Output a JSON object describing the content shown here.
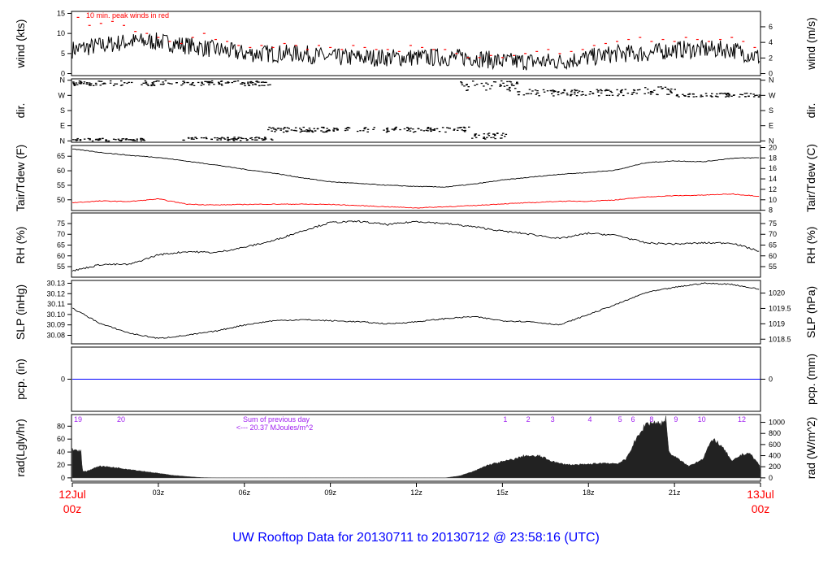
{
  "title": "UW Rooftop Data for 20130711  to  20130712 @ 23:58:16  (UTC)",
  "colors": {
    "main": "#000000",
    "peak": "#ff0000",
    "dew": "#ff0000",
    "pcp": "#0000ff",
    "accum": "#a020f0",
    "title": "#0000ff",
    "date": "#ff0000"
  },
  "x_axis": {
    "range_hours": [
      0,
      24
    ],
    "ticks": [
      {
        "h": 3,
        "label": "03z"
      },
      {
        "h": 6,
        "label": "06z"
      },
      {
        "h": 9,
        "label": "09z"
      },
      {
        "h": 12,
        "label": "12z"
      },
      {
        "h": 15,
        "label": "15z"
      },
      {
        "h": 18,
        "label": "18z"
      },
      {
        "h": 21,
        "label": "21z"
      }
    ],
    "start_label": [
      "12Jul",
      "00z"
    ],
    "end_label": [
      "13Jul",
      "00z"
    ]
  },
  "chart_data": [
    {
      "type": "line",
      "id": "wind",
      "ylabel": "wind (kts)",
      "ylabel_right": "wind (m/s)",
      "ylim": [
        -0.5,
        15.5
      ],
      "yticks": [
        0,
        5,
        10,
        15
      ],
      "yticks_right": [
        0,
        2,
        4,
        6
      ],
      "annotation": "10 min. peak winds in red",
      "hours": [
        0,
        1,
        2,
        3,
        4,
        5,
        6,
        7,
        8,
        9,
        10,
        11,
        12,
        13,
        14,
        15,
        16,
        17,
        18,
        19,
        20,
        21,
        22,
        23,
        24
      ],
      "mean": [
        6,
        7,
        8,
        8,
        7,
        6,
        5,
        5,
        5,
        4,
        4,
        4,
        4,
        4,
        4,
        3,
        3,
        3,
        4,
        5,
        5,
        6,
        6,
        6,
        4
      ],
      "peak_hours": [
        0.2,
        0.6,
        1,
        1.4,
        1.8,
        2.2,
        2.6,
        3,
        3.4,
        3.8,
        4.2,
        4.6,
        5,
        5.4,
        5.8,
        6.2,
        6.6,
        7,
        7.4,
        7.8,
        8.2,
        8.6,
        9,
        9.4,
        9.8,
        10.2,
        10.6,
        11,
        11.4,
        11.8,
        12.2,
        12.6,
        13,
        13.4,
        13.8,
        14.2,
        14.6,
        15,
        15.4,
        15.8,
        16.2,
        16.6,
        17,
        17.4,
        17.8,
        18.2,
        18.6,
        19,
        19.4,
        19.8,
        20.2,
        20.6,
        21,
        21.4,
        21.8,
        22.2,
        22.6,
        23,
        23.4,
        23.8
      ],
      "peak": [
        14,
        12,
        12.5,
        13,
        12,
        10.5,
        10,
        9,
        8,
        7.5,
        9,
        10,
        8.5,
        8,
        7,
        6.5,
        7,
        6.5,
        7.5,
        7,
        6,
        7,
        6.5,
        6,
        7,
        6.5,
        6,
        6,
        5.5,
        7,
        6.5,
        6,
        6,
        5,
        4,
        4,
        4.5,
        4,
        4.5,
        5,
        5.5,
        6,
        5,
        5.5,
        6,
        7,
        7.5,
        8,
        8.5,
        9,
        8,
        8.5,
        8,
        9,
        8.5,
        8,
        8.5,
        9,
        8,
        6.5
      ]
    },
    {
      "type": "scatter",
      "id": "dir",
      "ylabel": "dir.",
      "ylabel_right": "dir.",
      "ylim": [
        -8,
        368
      ],
      "yticks": [
        {
          "v": 0,
          "label": "N"
        },
        {
          "v": 90,
          "label": "E"
        },
        {
          "v": 180,
          "label": "S"
        },
        {
          "v": 270,
          "label": "W"
        },
        {
          "v": 360,
          "label": "N"
        }
      ],
      "clusters": [
        {
          "from": 0,
          "to": 7,
          "deg": 345,
          "spread": 15
        },
        {
          "from": 0,
          "to": 2.5,
          "deg": 10,
          "spread": 8
        },
        {
          "from": 3.8,
          "to": 7,
          "deg": 15,
          "spread": 10
        },
        {
          "from": 6.8,
          "to": 13.8,
          "deg": 70,
          "spread": 15
        },
        {
          "from": 13.8,
          "to": 15.2,
          "deg": 30,
          "spread": 20
        },
        {
          "from": 13.5,
          "to": 15.5,
          "deg": 330,
          "spread": 30
        },
        {
          "from": 15.5,
          "to": 19.8,
          "deg": 290,
          "spread": 20
        },
        {
          "from": 19.8,
          "to": 21,
          "deg": 300,
          "spread": 25
        },
        {
          "from": 21,
          "to": 24,
          "deg": 275,
          "spread": 12
        }
      ]
    },
    {
      "type": "line",
      "id": "temp",
      "ylabel": "Tair/Tdew (F)",
      "ylabel_right": "Tair/Tdew (C)",
      "ylim": [
        46.3,
        68.7
      ],
      "yticks": [
        50,
        55,
        60,
        65
      ],
      "yticks_right": [
        8,
        10,
        12,
        14,
        16,
        18,
        20
      ],
      "hours": [
        0,
        1,
        2,
        3,
        4,
        5,
        6,
        7,
        8,
        9,
        10,
        11,
        12,
        13,
        14,
        15,
        16,
        17,
        18,
        19,
        20,
        21,
        22,
        23,
        24
      ],
      "series": [
        {
          "name": "Tair",
          "values": [
            67.5,
            66.3,
            65.3,
            64.6,
            63.3,
            62,
            60.5,
            59.2,
            57.6,
            56.2,
            55.6,
            55,
            54.6,
            54.4,
            55.4,
            56.8,
            57.8,
            58.8,
            59.4,
            60.3,
            62.8,
            63.4,
            63.1,
            64.3,
            64.5
          ]
        },
        {
          "name": "Tdew",
          "values": [
            49,
            49.6,
            49.4,
            50.3,
            48.5,
            48.2,
            48.4,
            48.5,
            48.5,
            48.4,
            48,
            47.6,
            47.2,
            47.6,
            48,
            48.6,
            49,
            49.5,
            49.5,
            50,
            51,
            51.4,
            51.6,
            52,
            51.2
          ]
        }
      ]
    },
    {
      "type": "line",
      "id": "rh",
      "ylabel": "RH (%)",
      "ylabel_right": "RH (%)",
      "ylim": [
        50.1,
        79.9
      ],
      "yticks": [
        55,
        60,
        65,
        70,
        75
      ],
      "yticks_right": [
        55,
        60,
        65,
        70,
        75
      ],
      "hours": [
        0,
        1,
        2,
        3,
        4,
        5,
        6,
        7,
        8,
        9,
        10,
        11,
        12,
        13,
        14,
        15,
        16,
        17,
        18,
        19,
        20,
        21,
        22,
        23,
        24
      ],
      "values": [
        53,
        56,
        56,
        60.5,
        62,
        61.5,
        64,
        67,
        71.5,
        75.5,
        76,
        74.5,
        76,
        75,
        73.5,
        71.5,
        70,
        68,
        70.5,
        69.5,
        66,
        65.5,
        66,
        66,
        62
      ]
    },
    {
      "type": "line",
      "id": "slp",
      "ylabel": "SLP (inHg)",
      "ylabel_right": "SLP (hPa)",
      "ylim": [
        30.0718,
        30.1327
      ],
      "yticks": [
        30.08,
        30.09,
        30.1,
        30.11,
        30.12,
        30.13
      ],
      "yticks_right": [
        1018.5,
        1019,
        1019.5,
        1020
      ],
      "hours": [
        0,
        1,
        2,
        3,
        4,
        5,
        6,
        7,
        8,
        9,
        10,
        11,
        12,
        13,
        14,
        15,
        16,
        17,
        18,
        19,
        20,
        21,
        22,
        23,
        24
      ],
      "values": [
        30.106,
        30.091,
        30.082,
        30.077,
        30.08,
        30.084,
        30.09,
        30.094,
        30.095,
        30.094,
        30.093,
        30.091,
        30.093,
        30.096,
        30.098,
        30.094,
        30.093,
        30.09,
        30.1,
        30.11,
        30.121,
        30.126,
        30.13,
        30.129,
        30.124
      ]
    },
    {
      "type": "line",
      "id": "pcp",
      "ylabel": "pcp. (in)",
      "ylabel_right": "pcp. (mm)",
      "ylim": [
        -1,
        1
      ],
      "yticks": [
        0
      ],
      "yticks_right": [
        0
      ],
      "hours": [
        0,
        24
      ],
      "values": [
        0,
        0
      ]
    },
    {
      "type": "area",
      "id": "rad",
      "ylabel": "rad(Lgly/hr)",
      "ylabel_right": "rad (W/m^2)",
      "ylim": [
        -5.2,
        98
      ],
      "yticks": [
        0,
        20,
        40,
        60,
        80
      ],
      "yticks_right": [
        0,
        200,
        400,
        600,
        800,
        1000
      ],
      "hours": [
        0,
        0.3,
        0.35,
        0.5,
        0.9,
        1,
        1.5,
        2,
        2.5,
        3,
        3.5,
        4,
        4.5,
        5,
        13,
        13.5,
        14,
        14.5,
        15,
        15.3,
        15.5,
        15.8,
        16,
        16.3,
        16.6,
        17,
        17.5,
        18,
        18.5,
        19,
        19.3,
        19.6,
        19.8,
        20,
        20.3,
        20.6,
        20.7,
        20.8,
        21,
        21.5,
        22,
        22.2,
        22.4,
        22.8,
        23,
        23.3,
        23.6,
        24
      ],
      "values": [
        44,
        42,
        10,
        10,
        18,
        18,
        16,
        13,
        10,
        7,
        4,
        2,
        0.5,
        0,
        0,
        3,
        10,
        20,
        25,
        28,
        30,
        35,
        33,
        34,
        28,
        22,
        20,
        21,
        23,
        22,
        28,
        55,
        68,
        84,
        86,
        84,
        95,
        40,
        33,
        18,
        30,
        50,
        60,
        40,
        25,
        35,
        39,
        18
      ],
      "accum_label": [
        "Sum of previous day",
        "<--- 20.37 MJoules/m^2"
      ],
      "accum_marks": [
        {
          "h": 0.2,
          "label": "19"
        },
        {
          "h": 1.7,
          "label": "20"
        },
        {
          "h": 15.1,
          "label": "1"
        },
        {
          "h": 15.9,
          "label": "2"
        },
        {
          "h": 16.75,
          "label": "3"
        },
        {
          "h": 18.05,
          "label": "4"
        },
        {
          "h": 19.1,
          "label": "5"
        },
        {
          "h": 19.55,
          "label": "6"
        },
        {
          "h": 20.2,
          "label": "8"
        },
        {
          "h": 21.05,
          "label": "9"
        },
        {
          "h": 21.95,
          "label": "10"
        },
        {
          "h": 23.35,
          "label": "12"
        }
      ]
    }
  ]
}
